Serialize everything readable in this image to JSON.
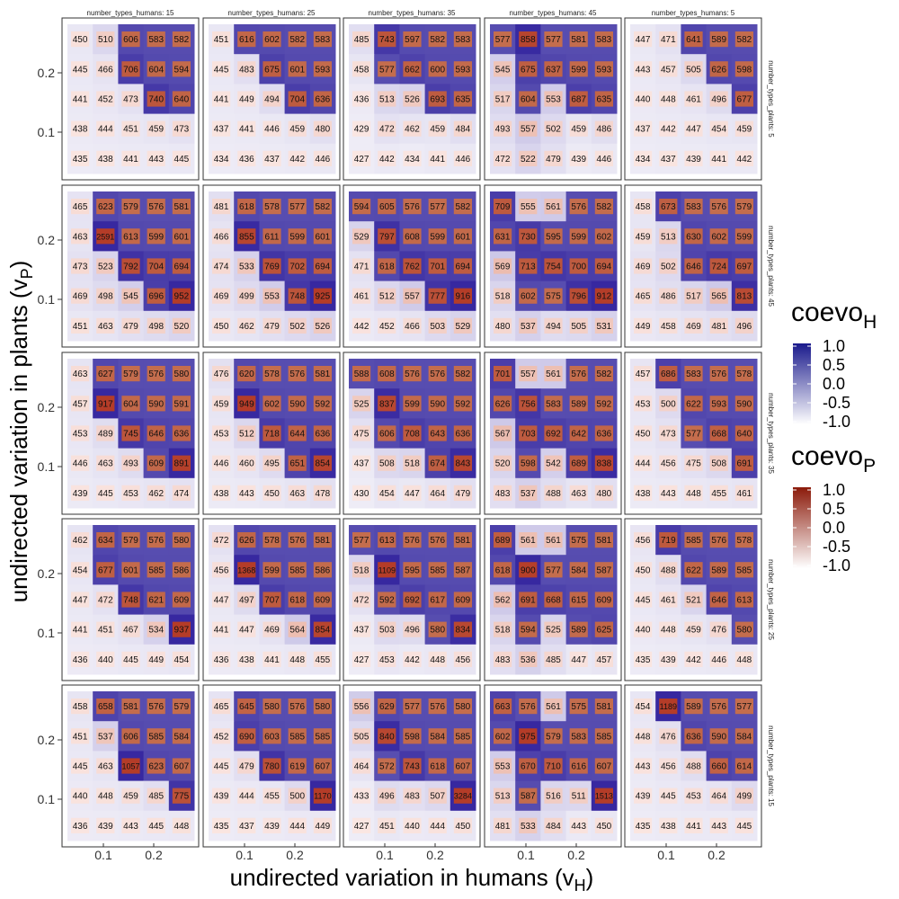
{
  "chart_data": {
    "type": "heatmap",
    "xlabel": "undirected variation in humans (v",
    "xlabel_sub": "H",
    "xlabel_close": ")",
    "ylabel": "undirected variation in plants (v",
    "ylabel_sub": "P",
    "ylabel_close": ")",
    "x_ticks": [
      "0.1",
      "0.2"
    ],
    "y_ticks": [
      "0.2",
      "0.1"
    ],
    "column_facets": [
      "number_types_humans: 15",
      "number_types_humans: 25",
      "number_types_humans: 35",
      "number_types_humans: 45",
      "number_types_humans: 5"
    ],
    "row_facets": [
      "number_types_plants: 5",
      "number_types_plants: 45",
      "number_types_plants: 35",
      "number_types_plants: 25",
      "number_types_plants: 15"
    ],
    "legend_placement": "right",
    "legends": [
      {
        "title": "coevo",
        "title_sub": "H",
        "ticks": [
          "1.0",
          "0.5",
          "0.0",
          "-0.5",
          "-1.0"
        ],
        "color_high": "#1a1a8c",
        "color_low": "#ffffff"
      },
      {
        "title": "coevo",
        "title_sub": "P",
        "ticks": [
          "1.0",
          "0.5",
          "0.0",
          "-0.5",
          "-1.0"
        ],
        "color_high": "#8b1a0a",
        "color_low": "#ffffff"
      }
    ],
    "panels": [
      [
        [
          [
            450,
            510,
            606,
            583,
            582
          ],
          [
            445,
            466,
            706,
            604,
            594
          ],
          [
            441,
            452,
            473,
            740,
            640
          ],
          [
            438,
            444,
            451,
            459,
            473
          ],
          [
            435,
            438,
            441,
            443,
            445
          ]
        ],
        [
          [
            451,
            616,
            602,
            582,
            583
          ],
          [
            445,
            483,
            675,
            601,
            593
          ],
          [
            441,
            449,
            494,
            704,
            636
          ],
          [
            437,
            441,
            446,
            459,
            480
          ],
          [
            434,
            436,
            437,
            442,
            446
          ]
        ],
        [
          [
            485,
            743,
            597,
            582,
            583
          ],
          [
            458,
            577,
            662,
            600,
            593
          ],
          [
            436,
            513,
            526,
            693,
            635
          ],
          [
            429,
            472,
            462,
            459,
            484
          ],
          [
            427,
            442,
            434,
            441,
            446
          ]
        ],
        [
          [
            577,
            858,
            577,
            581,
            583
          ],
          [
            545,
            675,
            637,
            599,
            593
          ],
          [
            517,
            604,
            553,
            687,
            635
          ],
          [
            493,
            557,
            502,
            459,
            486
          ],
          [
            472,
            522,
            479,
            439,
            446
          ]
        ],
        [
          [
            447,
            471,
            641,
            589,
            582
          ],
          [
            443,
            457,
            505,
            626,
            598
          ],
          [
            440,
            448,
            461,
            496,
            677
          ],
          [
            437,
            442,
            447,
            454,
            459
          ],
          [
            434,
            437,
            439,
            441,
            442
          ]
        ]
      ],
      [
        [
          [
            465,
            623,
            579,
            576,
            581
          ],
          [
            463,
            2591,
            613,
            599,
            601
          ],
          [
            473,
            523,
            792,
            704,
            694
          ],
          [
            469,
            498,
            545,
            696,
            952
          ],
          [
            451,
            463,
            479,
            498,
            520
          ]
        ],
        [
          [
            481,
            618,
            578,
            577,
            582
          ],
          [
            466,
            855,
            611,
            599,
            601
          ],
          [
            474,
            533,
            769,
            702,
            694
          ],
          [
            469,
            499,
            553,
            748,
            925
          ],
          [
            450,
            462,
            479,
            502,
            526
          ]
        ],
        [
          [
            594,
            605,
            576,
            577,
            582
          ],
          [
            529,
            797,
            608,
            599,
            601
          ],
          [
            471,
            618,
            762,
            701,
            694
          ],
          [
            461,
            512,
            557,
            777,
            916
          ],
          [
            442,
            452,
            466,
            503,
            529
          ]
        ],
        [
          [
            709,
            555,
            561,
            576,
            582
          ],
          [
            631,
            730,
            595,
            599,
            602
          ],
          [
            569,
            713,
            754,
            700,
            694
          ],
          [
            518,
            602,
            575,
            796,
            912
          ],
          [
            480,
            537,
            494,
            505,
            531
          ]
        ],
        [
          [
            458,
            673,
            583,
            576,
            579
          ],
          [
            459,
            513,
            630,
            602,
            599
          ],
          [
            469,
            502,
            646,
            724,
            697
          ],
          [
            465,
            486,
            517,
            565,
            813
          ],
          [
            449,
            458,
            469,
            481,
            496
          ]
        ]
      ],
      [
        [
          [
            463,
            627,
            579,
            576,
            580
          ],
          [
            457,
            917,
            604,
            590,
            591
          ],
          [
            453,
            489,
            745,
            646,
            636
          ],
          [
            446,
            463,
            493,
            609,
            891
          ],
          [
            439,
            445,
            453,
            462,
            474
          ]
        ],
        [
          [
            476,
            620,
            578,
            576,
            581
          ],
          [
            459,
            949,
            602,
            590,
            592
          ],
          [
            453,
            512,
            718,
            644,
            636
          ],
          [
            446,
            460,
            495,
            651,
            854
          ],
          [
            438,
            443,
            450,
            463,
            478
          ]
        ],
        [
          [
            588,
            608,
            576,
            576,
            582
          ],
          [
            525,
            837,
            599,
            590,
            592
          ],
          [
            475,
            606,
            708,
            643,
            636
          ],
          [
            437,
            508,
            518,
            674,
            843
          ],
          [
            430,
            454,
            447,
            464,
            479
          ]
        ],
        [
          [
            701,
            557,
            561,
            576,
            582
          ],
          [
            626,
            756,
            583,
            589,
            592
          ],
          [
            567,
            703,
            692,
            642,
            636
          ],
          [
            520,
            598,
            542,
            689,
            838
          ],
          [
            483,
            537,
            488,
            463,
            480
          ]
        ],
        [
          [
            457,
            686,
            583,
            576,
            578
          ],
          [
            453,
            500,
            622,
            593,
            590
          ],
          [
            450,
            473,
            577,
            668,
            640
          ],
          [
            444,
            456,
            475,
            508,
            691
          ],
          [
            438,
            443,
            448,
            455,
            461
          ]
        ]
      ],
      [
        [
          [
            462,
            634,
            579,
            576,
            580
          ],
          [
            454,
            677,
            601,
            585,
            586
          ],
          [
            447,
            472,
            748,
            621,
            609
          ],
          [
            441,
            451,
            467,
            534,
            937
          ],
          [
            436,
            440,
            445,
            449,
            454
          ]
        ],
        [
          [
            472,
            626,
            578,
            576,
            581
          ],
          [
            456,
            1368,
            599,
            585,
            586
          ],
          [
            447,
            497,
            707,
            618,
            609
          ],
          [
            441,
            447,
            469,
            564,
            854
          ],
          [
            436,
            438,
            441,
            448,
            455
          ]
        ],
        [
          [
            577,
            613,
            576,
            576,
            581
          ],
          [
            518,
            1109,
            595,
            585,
            587
          ],
          [
            472,
            592,
            692,
            617,
            609
          ],
          [
            437,
            503,
            496,
            580,
            834
          ],
          [
            427,
            453,
            442,
            448,
            456
          ]
        ],
        [
          [
            689,
            561,
            561,
            575,
            581
          ],
          [
            618,
            900,
            577,
            584,
            587
          ],
          [
            562,
            691,
            668,
            615,
            609
          ],
          [
            518,
            594,
            525,
            589,
            625
          ],
          [
            483,
            536,
            485,
            447,
            457
          ]
        ],
        [
          [
            456,
            719,
            585,
            576,
            578
          ],
          [
            450,
            488,
            622,
            589,
            585
          ],
          [
            445,
            461,
            521,
            646,
            613
          ],
          [
            440,
            448,
            459,
            476,
            580
          ],
          [
            435,
            439,
            442,
            446,
            448
          ]
        ]
      ],
      [
        [
          [
            458,
            658,
            581,
            576,
            579
          ],
          [
            451,
            537,
            606,
            585,
            584
          ],
          [
            445,
            463,
            1057,
            623,
            607
          ],
          [
            440,
            448,
            459,
            485,
            775
          ],
          [
            436,
            439,
            443,
            445,
            448
          ]
        ],
        [
          [
            465,
            645,
            580,
            576,
            580
          ],
          [
            452,
            690,
            603,
            585,
            585
          ],
          [
            445,
            479,
            780,
            619,
            607
          ],
          [
            439,
            444,
            455,
            500,
            1170
          ],
          [
            435,
            437,
            439,
            444,
            449
          ]
        ],
        [
          [
            556,
            629,
            577,
            576,
            580
          ],
          [
            505,
            840,
            598,
            584,
            585
          ],
          [
            464,
            572,
            743,
            618,
            607
          ],
          [
            433,
            496,
            483,
            507,
            3284
          ],
          [
            427,
            451,
            440,
            444,
            450
          ]
        ],
        [
          [
            663,
            576,
            561,
            575,
            581
          ],
          [
            602,
            975,
            579,
            583,
            585
          ],
          [
            553,
            670,
            710,
            616,
            607
          ],
          [
            513,
            587,
            516,
            511,
            1513
          ],
          [
            481,
            533,
            484,
            443,
            450
          ]
        ],
        [
          [
            454,
            1189,
            589,
            576,
            577
          ],
          [
            448,
            476,
            636,
            590,
            584
          ],
          [
            443,
            456,
            488,
            660,
            614
          ],
          [
            439,
            445,
            453,
            464,
            499
          ],
          [
            435,
            438,
            441,
            443,
            445
          ]
        ]
      ]
    ]
  }
}
